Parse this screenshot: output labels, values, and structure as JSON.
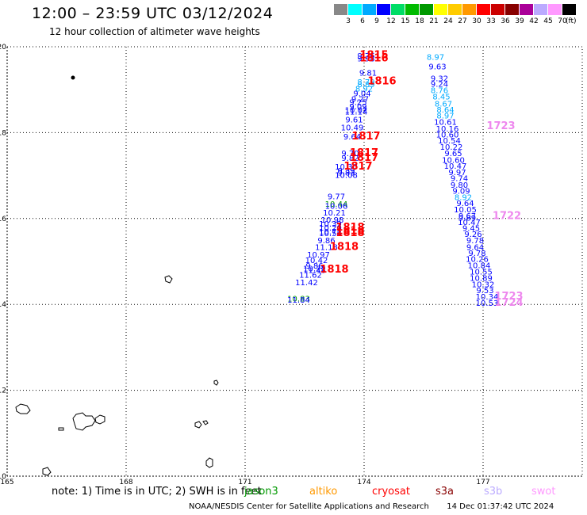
{
  "header": {
    "title": "12:00 – 23:59 UTC 03/12/2024",
    "subtitle": "12 hour collection of altimeter wave heights"
  },
  "scale": {
    "colors": [
      "#888888",
      "#00ffff",
      "#00aaff",
      "#0000ff",
      "#00dd66",
      "#00bb00",
      "#009900",
      "#ffff00",
      "#ffcc00",
      "#ff9900",
      "#ff0000",
      "#cc0000",
      "#880000",
      "#aa0099",
      "#bbaaff",
      "#ff99ff",
      "#000000"
    ],
    "labels": [
      "3",
      "6",
      "9",
      "12",
      "15",
      "18",
      "21",
      "24",
      "27",
      "30",
      "33",
      "36",
      "39",
      "42",
      "45",
      "70"
    ],
    "unit": "(ft)"
  },
  "map": {
    "y_labels": [
      "20",
      "18",
      "16",
      "14",
      "12",
      "10"
    ],
    "x_labels": [
      "165",
      "168",
      "171",
      "174",
      "177"
    ],
    "x_range": [
      165,
      179.5
    ],
    "y_range": [
      10,
      20
    ],
    "observations": [
      {
        "lon": 174.05,
        "lat": 19.72,
        "text": "9.76",
        "color": "#0000ff"
      },
      {
        "lon": 174.05,
        "lat": 19.66,
        "text": "9.98",
        "color": "#0000ff"
      },
      {
        "lon": 175.8,
        "lat": 19.7,
        "text": "8.97",
        "color": "#00aaff"
      },
      {
        "lon": 175.85,
        "lat": 19.47,
        "text": "9.63",
        "color": "#0000ff"
      },
      {
        "lon": 174.1,
        "lat": 19.33,
        "text": "9.81",
        "color": "#0000ff"
      },
      {
        "lon": 175.9,
        "lat": 19.2,
        "text": "9.32",
        "color": "#0000ff"
      },
      {
        "lon": 174.05,
        "lat": 19.11,
        "text": "8.79",
        "color": "#00aaff"
      },
      {
        "lon": 174.05,
        "lat": 19.06,
        "text": "8.89",
        "color": "#00aaff"
      },
      {
        "lon": 175.9,
        "lat": 19.07,
        "text": "9.24",
        "color": "#0000ff"
      },
      {
        "lon": 174.0,
        "lat": 18.96,
        "text": "8.92",
        "color": "#00aaff"
      },
      {
        "lon": 175.9,
        "lat": 18.92,
        "text": "8.76",
        "color": "#00aaff"
      },
      {
        "lon": 173.95,
        "lat": 18.85,
        "text": "9.04",
        "color": "#0000ff"
      },
      {
        "lon": 175.95,
        "lat": 18.77,
        "text": "8.45",
        "color": "#00aaff"
      },
      {
        "lon": 173.9,
        "lat": 18.72,
        "text": "9.27",
        "color": "#0000ff"
      },
      {
        "lon": 173.85,
        "lat": 18.64,
        "text": "9.25",
        "color": "#0000ff"
      },
      {
        "lon": 176.0,
        "lat": 18.61,
        "text": "8.67",
        "color": "#00aaff"
      },
      {
        "lon": 173.85,
        "lat": 18.54,
        "text": "9.09",
        "color": "#0000ff"
      },
      {
        "lon": 173.8,
        "lat": 18.46,
        "text": "10.02",
        "color": "#0000ff"
      },
      {
        "lon": 173.8,
        "lat": 18.42,
        "text": "11.14",
        "color": "#0000ff"
      },
      {
        "lon": 176.05,
        "lat": 18.47,
        "text": "8.64",
        "color": "#00aaff"
      },
      {
        "lon": 176.05,
        "lat": 18.33,
        "text": "8.97",
        "color": "#00aaff"
      },
      {
        "lon": 173.75,
        "lat": 18.24,
        "text": "9.61",
        "color": "#0000ff"
      },
      {
        "lon": 176.05,
        "lat": 18.18,
        "text": "10.61",
        "color": "#0000ff"
      },
      {
        "lon": 173.7,
        "lat": 18.05,
        "text": "10.49",
        "color": "#0000ff"
      },
      {
        "lon": 176.1,
        "lat": 18.03,
        "text": "10.16",
        "color": "#0000ff"
      },
      {
        "lon": 176.1,
        "lat": 17.89,
        "text": "10.60",
        "color": "#0000ff"
      },
      {
        "lon": 173.7,
        "lat": 17.84,
        "text": "9.64",
        "color": "#0000ff"
      },
      {
        "lon": 176.15,
        "lat": 17.75,
        "text": "10.54",
        "color": "#0000ff"
      },
      {
        "lon": 176.2,
        "lat": 17.6,
        "text": "10.22",
        "color": "#0000ff"
      },
      {
        "lon": 176.25,
        "lat": 17.45,
        "text": "9.65",
        "color": "#0000ff"
      },
      {
        "lon": 173.65,
        "lat": 17.45,
        "text": "9.70",
        "color": "#0000ff"
      },
      {
        "lon": 173.65,
        "lat": 17.34,
        "text": "9.82",
        "color": "#0000ff"
      },
      {
        "lon": 176.25,
        "lat": 17.3,
        "text": "10.60",
        "color": "#0000ff"
      },
      {
        "lon": 176.3,
        "lat": 17.16,
        "text": "10.47",
        "color": "#0000ff"
      },
      {
        "lon": 173.55,
        "lat": 17.14,
        "text": "10.30",
        "color": "#0000ff"
      },
      {
        "lon": 173.55,
        "lat": 17.05,
        "text": "9.39",
        "color": "#0000ff"
      },
      {
        "lon": 173.55,
        "lat": 17.0,
        "text": "9.83",
        "color": "#0000ff"
      },
      {
        "lon": 173.55,
        "lat": 16.95,
        "text": "10.08",
        "color": "#0000ff"
      },
      {
        "lon": 176.35,
        "lat": 17.01,
        "text": "9.97",
        "color": "#0000ff"
      },
      {
        "lon": 176.4,
        "lat": 16.87,
        "text": "9.74",
        "color": "#0000ff"
      },
      {
        "lon": 176.4,
        "lat": 16.72,
        "text": "9.80",
        "color": "#0000ff"
      },
      {
        "lon": 176.45,
        "lat": 16.58,
        "text": "9.09",
        "color": "#0000ff"
      },
      {
        "lon": 176.5,
        "lat": 16.43,
        "text": "8.92",
        "color": "#00aaff"
      },
      {
        "lon": 173.3,
        "lat": 16.45,
        "text": "9.77",
        "color": "#0000ff"
      },
      {
        "lon": 176.55,
        "lat": 16.29,
        "text": "9.64",
        "color": "#0000ff"
      },
      {
        "lon": 173.3,
        "lat": 16.27,
        "text": "10.44",
        "color": "#009900"
      },
      {
        "lon": 173.3,
        "lat": 16.23,
        "text": "10.06",
        "color": "#0000ff"
      },
      {
        "lon": 176.55,
        "lat": 16.14,
        "text": "10.05",
        "color": "#0000ff"
      },
      {
        "lon": 173.25,
        "lat": 16.07,
        "text": "10.21",
        "color": "#0000ff"
      },
      {
        "lon": 176.6,
        "lat": 16.0,
        "text": "9.67",
        "color": "#0000ff"
      },
      {
        "lon": 176.6,
        "lat": 15.95,
        "text": "9.89",
        "color": "#0000ff"
      },
      {
        "lon": 173.2,
        "lat": 15.9,
        "text": "10.98",
        "color": "#0000ff"
      },
      {
        "lon": 176.65,
        "lat": 15.85,
        "text": "10.47",
        "color": "#0000ff"
      },
      {
        "lon": 173.15,
        "lat": 15.81,
        "text": "10.39",
        "color": "#0000ff"
      },
      {
        "lon": 176.7,
        "lat": 15.71,
        "text": "9.45",
        "color": "#0000ff"
      },
      {
        "lon": 173.15,
        "lat": 15.72,
        "text": "10.20",
        "color": "#0000ff"
      },
      {
        "lon": 173.15,
        "lat": 15.63,
        "text": "10.71",
        "color": "#0000ff"
      },
      {
        "lon": 173.15,
        "lat": 15.59,
        "text": "10.58",
        "color": "#0000ff"
      },
      {
        "lon": 176.75,
        "lat": 15.57,
        "text": "9.26",
        "color": "#0000ff"
      },
      {
        "lon": 176.8,
        "lat": 15.42,
        "text": "9.78",
        "color": "#0000ff"
      },
      {
        "lon": 173.05,
        "lat": 15.42,
        "text": "9.86",
        "color": "#0000ff"
      },
      {
        "lon": 176.8,
        "lat": 15.27,
        "text": "9.64",
        "color": "#0000ff"
      },
      {
        "lon": 173.05,
        "lat": 15.27,
        "text": "11.18",
        "color": "#0000ff"
      },
      {
        "lon": 176.85,
        "lat": 15.13,
        "text": "9.78",
        "color": "#0000ff"
      },
      {
        "lon": 172.85,
        "lat": 15.09,
        "text": "10.97",
        "color": "#0000ff"
      },
      {
        "lon": 176.85,
        "lat": 14.99,
        "text": "10.26",
        "color": "#0000ff"
      },
      {
        "lon": 172.8,
        "lat": 14.96,
        "text": "10.42",
        "color": "#0000ff"
      },
      {
        "lon": 176.9,
        "lat": 14.84,
        "text": "10.84",
        "color": "#0000ff"
      },
      {
        "lon": 172.75,
        "lat": 14.83,
        "text": "9.86",
        "color": "#0000ff"
      },
      {
        "lon": 172.75,
        "lat": 14.77,
        "text": "10.72",
        "color": "#0000ff"
      },
      {
        "lon": 172.75,
        "lat": 14.73,
        "text": "11.48",
        "color": "#0000ff"
      },
      {
        "lon": 176.95,
        "lat": 14.7,
        "text": "10.55",
        "color": "#0000ff"
      },
      {
        "lon": 172.65,
        "lat": 14.62,
        "text": "11.62",
        "color": "#0000ff"
      },
      {
        "lon": 176.95,
        "lat": 14.55,
        "text": "10.89",
        "color": "#0000ff"
      },
      {
        "lon": 177.0,
        "lat": 14.4,
        "text": "10.32",
        "color": "#0000ff"
      },
      {
        "lon": 172.55,
        "lat": 14.45,
        "text": "11.42",
        "color": "#0000ff"
      },
      {
        "lon": 177.05,
        "lat": 14.26,
        "text": "9.53",
        "color": "#0000ff"
      },
      {
        "lon": 177.1,
        "lat": 14.11,
        "text": "10.34",
        "color": "#0000ff"
      },
      {
        "lon": 172.35,
        "lat": 14.07,
        "text": "10.83",
        "color": "#009900"
      },
      {
        "lon": 172.35,
        "lat": 14.04,
        "text": "11.84",
        "color": "#0000ff"
      },
      {
        "lon": 177.1,
        "lat": 13.97,
        "text": "10.53",
        "color": "#0000ff"
      }
    ],
    "passes": [
      {
        "lon": 174.25,
        "lat": 19.73,
        "text": "1815",
        "color": "#ff0000"
      },
      {
        "lon": 174.25,
        "lat": 19.66,
        "text": "1816",
        "color": "#ff0000"
      },
      {
        "lon": 174.45,
        "lat": 19.12,
        "text": "1816",
        "color": "#ff0000"
      },
      {
        "lon": 177.45,
        "lat": 18.08,
        "text": "1723",
        "color": "#ee88ee"
      },
      {
        "lon": 174.05,
        "lat": 17.84,
        "text": "1817",
        "color": "#ff0000"
      },
      {
        "lon": 174.0,
        "lat": 17.45,
        "text": "1817",
        "color": "#ff0000"
      },
      {
        "lon": 174.0,
        "lat": 17.34,
        "text": "1817",
        "color": "#ff0000"
      },
      {
        "lon": 173.85,
        "lat": 17.14,
        "text": "1817",
        "color": "#ff0000"
      },
      {
        "lon": 177.6,
        "lat": 15.99,
        "text": "1722",
        "color": "#ee88ee"
      },
      {
        "lon": 173.65,
        "lat": 15.72,
        "text": "1818",
        "color": "#ff0000"
      },
      {
        "lon": 173.65,
        "lat": 15.64,
        "text": "1818",
        "color": "#ff0000"
      },
      {
        "lon": 173.65,
        "lat": 15.59,
        "text": "1818",
        "color": "#ff0000"
      },
      {
        "lon": 173.5,
        "lat": 15.27,
        "text": "1818",
        "color": "#ff0000"
      },
      {
        "lon": 173.25,
        "lat": 14.74,
        "text": "1818",
        "color": "#ff0000"
      },
      {
        "lon": 177.65,
        "lat": 14.11,
        "text": "1723",
        "color": "#ee88ee"
      },
      {
        "lon": 177.65,
        "lat": 13.97,
        "text": "1724",
        "color": "#ee88ee"
      }
    ]
  },
  "legend": {
    "note": "note:  1) Time is in UTC; 2) SWH is in feet",
    "sats": [
      {
        "name": "jason3",
        "color": "#009900"
      },
      {
        "name": "altiko",
        "color": "#ff9900"
      },
      {
        "name": "cryosat",
        "color": "#ff0000"
      },
      {
        "name": "s3a",
        "color": "#880000"
      },
      {
        "name": "s3b",
        "color": "#bbaaff"
      },
      {
        "name": "swot",
        "color": "#ff99ff"
      }
    ]
  },
  "footer": {
    "credit": "NOAA/NESDIS Center for Satellite Applications and Research",
    "timestamp": "14 Dec 01:37:42 UTC 2024"
  }
}
